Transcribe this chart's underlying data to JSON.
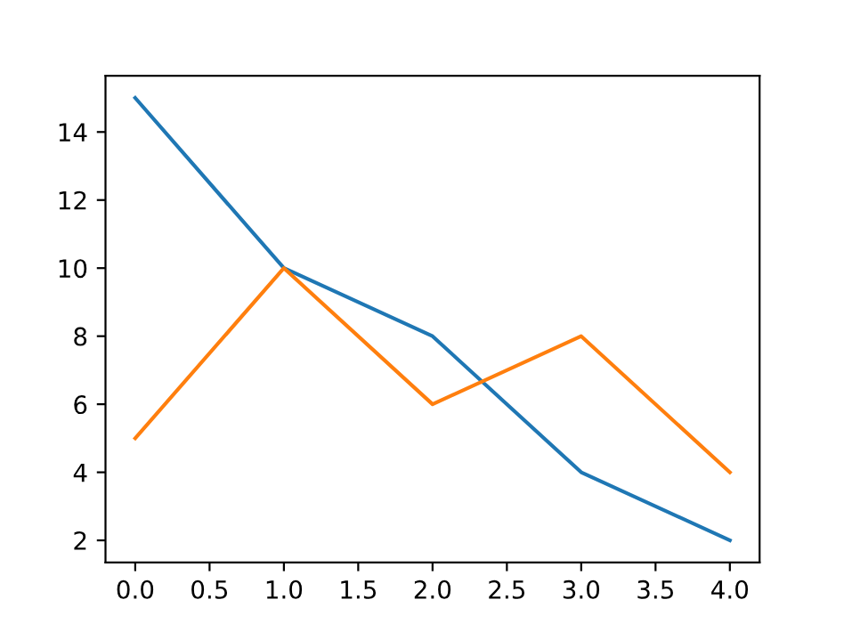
{
  "chart_data": {
    "type": "line",
    "x": [
      0,
      1,
      2,
      3,
      4
    ],
    "series": [
      {
        "color": "#1f77b4",
        "values": [
          15,
          10,
          8,
          4,
          2
        ]
      },
      {
        "color": "#ff7f0e",
        "values": [
          5,
          10,
          6,
          8,
          4
        ]
      }
    ],
    "xlim": [
      -0.2,
      4.2
    ],
    "ylim": [
      1.35,
      15.65
    ],
    "xticks": [
      {
        "value": 0,
        "label": "0.0"
      },
      {
        "value": 0.5,
        "label": "0.5"
      },
      {
        "value": 1,
        "label": "1.0"
      },
      {
        "value": 1.5,
        "label": "1.5"
      },
      {
        "value": 2,
        "label": "2.0"
      },
      {
        "value": 2.5,
        "label": "2.5"
      },
      {
        "value": 3,
        "label": "3.0"
      },
      {
        "value": 3.5,
        "label": "3.5"
      },
      {
        "value": 4,
        "label": "4.0"
      }
    ],
    "yticks": [
      2,
      4,
      6,
      8,
      10,
      12,
      14
    ],
    "grid": false,
    "legend": false
  }
}
